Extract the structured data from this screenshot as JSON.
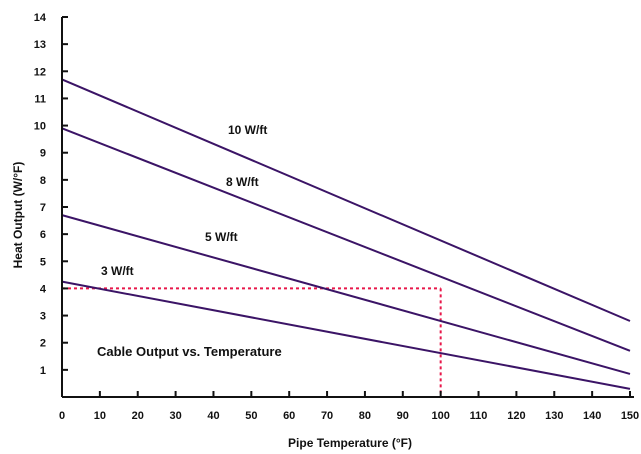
{
  "chart_data": {
    "type": "line",
    "title": "",
    "annotation": "Cable Output vs. Temperature",
    "xlabel": "Pipe Temperature (°F)",
    "ylabel": "Heat Output (W/°F)",
    "xlim": [
      0,
      150
    ],
    "ylim": [
      0,
      14
    ],
    "xticks": [
      0,
      10,
      20,
      30,
      40,
      50,
      60,
      70,
      80,
      90,
      100,
      110,
      120,
      130,
      140,
      150
    ],
    "yticks": [
      1,
      2,
      3,
      4,
      5,
      6,
      7,
      8,
      9,
      10,
      11,
      12,
      13,
      14
    ],
    "grid": false,
    "series": [
      {
        "name": "10 W/ft",
        "x": [
          0,
          150
        ],
        "y": [
          11.7,
          2.8
        ]
      },
      {
        "name": "8 W/ft",
        "x": [
          0,
          150
        ],
        "y": [
          9.9,
          1.7
        ]
      },
      {
        "name": "5 W/ft",
        "x": [
          0,
          150
        ],
        "y": [
          6.7,
          0.85
        ]
      },
      {
        "name": "3 W/ft",
        "x": [
          0,
          150
        ],
        "y": [
          4.25,
          0.3
        ]
      }
    ],
    "reference_lines": [
      {
        "x": [
          0,
          100
        ],
        "y": [
          4,
          4
        ]
      },
      {
        "x": [
          100,
          100
        ],
        "y": [
          4,
          0
        ]
      }
    ],
    "colors": {
      "series": "#3b1466",
      "reference": "#e8174a",
      "axis": "#111111"
    }
  }
}
